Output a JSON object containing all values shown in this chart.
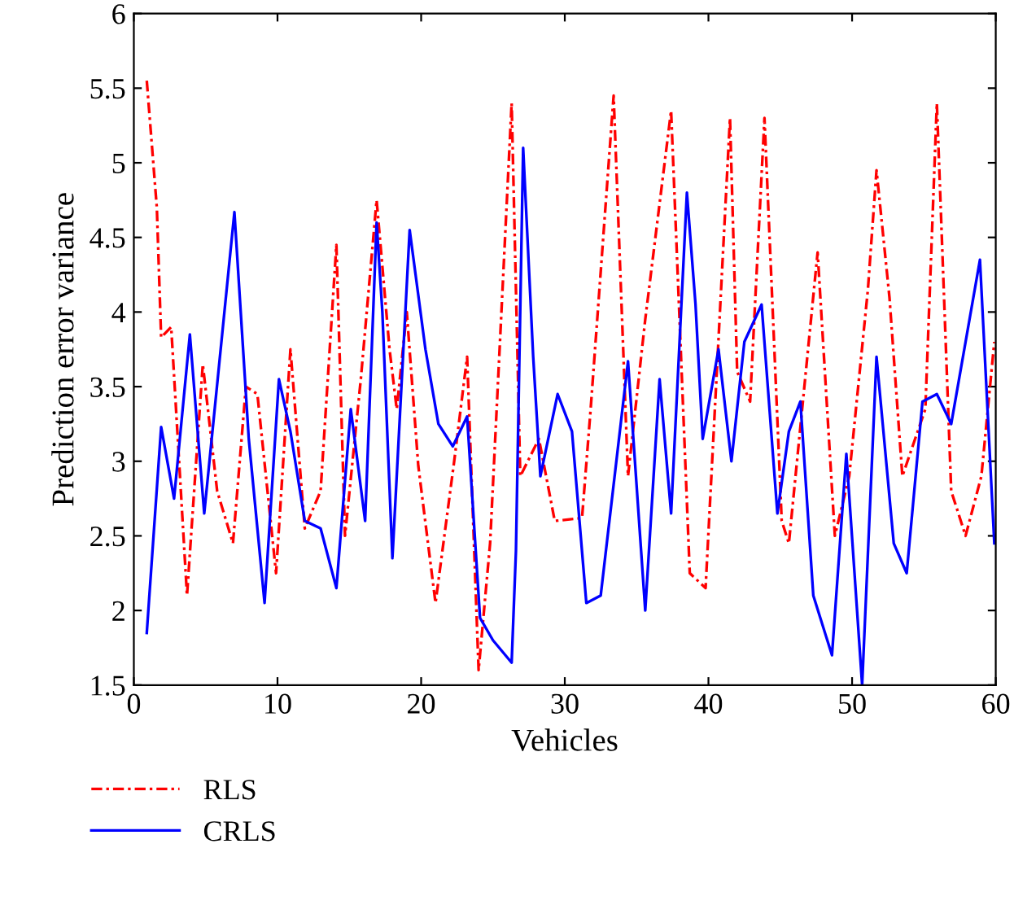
{
  "chart_data": {
    "type": "line",
    "xlabel": "Vehicles",
    "ylabel": "Prediction error variance",
    "xlim": [
      0,
      60
    ],
    "xticks": [
      0,
      10,
      20,
      30,
      40,
      50,
      60
    ],
    "ylim": [
      1.5,
      6
    ],
    "yticks": [
      1.5,
      2,
      2.5,
      3,
      3.5,
      4,
      4.5,
      5,
      5.5,
      6
    ],
    "grid": false,
    "legend": "bottom left",
    "marker": "none",
    "series": [
      {
        "name": "RLS",
        "color": "#ff0000",
        "line_style": "dashed",
        "x": [
          0.9,
          1.6,
          1.9,
          2.6,
          3.7,
          4.8,
          5.8,
          6.9,
          7.8,
          8.6,
          9.9,
          10.9,
          11.9,
          13.0,
          14.1,
          14.7,
          15.8,
          16.9,
          17.8,
          18.3,
          19.0,
          19.8,
          21.0,
          22.3,
          23.2,
          24.0,
          24.8,
          26.3,
          26.9,
          28.2,
          29.3,
          31.2,
          31.8,
          33.4,
          34.4,
          35.6,
          37.4,
          38.7,
          39.8,
          41.5,
          42.0,
          42.9,
          43.9,
          45.1,
          45.6,
          47.6,
          48.8,
          49.8,
          51.1,
          51.7,
          52.6,
          53.5,
          55.1,
          55.9,
          56.9,
          57.9,
          59.0,
          59.9
        ],
        "values": [
          5.55,
          4.7,
          3.83,
          3.9,
          2.1,
          3.65,
          2.8,
          2.45,
          3.5,
          3.45,
          2.25,
          3.75,
          2.55,
          2.8,
          4.45,
          2.5,
          3.55,
          4.75,
          3.75,
          3.35,
          4.0,
          2.97,
          2.05,
          3.0,
          3.7,
          1.6,
          2.45,
          5.4,
          2.9,
          3.15,
          2.6,
          2.62,
          3.35,
          5.45,
          2.9,
          3.95,
          5.35,
          2.25,
          2.15,
          5.3,
          3.6,
          3.4,
          5.3,
          2.6,
          2.45,
          4.4,
          2.5,
          2.9,
          4.15,
          4.95,
          4.1,
          2.9,
          3.35,
          5.4,
          2.8,
          2.5,
          2.9,
          3.8
        ]
      },
      {
        "name": "CRLS",
        "color": "#0000ff",
        "line_style": "solid",
        "x": [
          0.9,
          1.9,
          2.8,
          3.9,
          4.9,
          7.0,
          8.0,
          9.1,
          10.1,
          10.9,
          11.9,
          13.0,
          14.1,
          15.1,
          16.1,
          16.9,
          17.3,
          18.0,
          19.2,
          20.3,
          21.2,
          22.2,
          23.2,
          24.1,
          25.0,
          26.3,
          26.6,
          27.1,
          27.8,
          28.3,
          29.5,
          30.5,
          31.5,
          32.5,
          34.4,
          35.6,
          36.6,
          37.4,
          38.5,
          39.1,
          39.6,
          40.7,
          41.6,
          42.5,
          43.7,
          44.8,
          45.6,
          46.4,
          47.3,
          48.6,
          49.6,
          50.7,
          51.7,
          52.9,
          53.8,
          54.9,
          55.9,
          56.9,
          58.9,
          59.9
        ],
        "values": [
          1.85,
          3.23,
          2.75,
          3.85,
          2.65,
          4.67,
          3.15,
          2.05,
          3.55,
          3.2,
          2.6,
          2.55,
          2.15,
          3.35,
          2.6,
          4.6,
          4.0,
          2.35,
          4.55,
          3.75,
          3.25,
          3.1,
          3.3,
          1.95,
          1.8,
          1.65,
          2.4,
          5.1,
          3.7,
          2.9,
          3.45,
          3.2,
          2.05,
          2.1,
          3.67,
          2.0,
          3.55,
          2.65,
          4.8,
          4.05,
          3.15,
          3.75,
          3.0,
          3.8,
          4.05,
          2.65,
          3.2,
          3.4,
          2.1,
          1.7,
          3.05,
          1.5,
          3.7,
          2.45,
          2.25,
          3.4,
          3.45,
          3.25,
          4.35,
          2.45
        ]
      }
    ]
  }
}
